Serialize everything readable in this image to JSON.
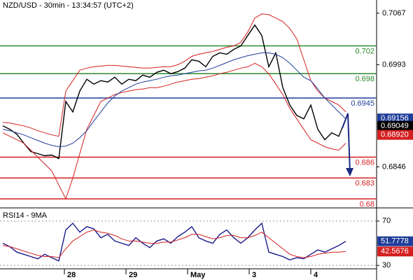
{
  "chart_data": [
    {
      "type": "line",
      "title": "NZD/USD - 30min - 13:34:57 (UTC+2)",
      "xlim": [
        -0.4,
        53.4
      ],
      "ylim": [
        0.6789,
        0.7086
      ],
      "yticks": [
        0.7067,
        0.6993,
        0.6846
      ],
      "series": [
        {
          "name": "Price",
          "color": "#000000",
          "values": [
            0.6905,
            0.69,
            0.6893,
            0.688,
            0.6868,
            0.6865,
            0.6862,
            0.6863,
            0.6858,
            0.694,
            0.6925,
            0.6955,
            0.6972,
            0.6965,
            0.697,
            0.6968,
            0.6975,
            0.6965,
            0.6972,
            0.697,
            0.6978,
            0.6975,
            0.6982,
            0.6985,
            0.698,
            0.6983,
            0.6988,
            0.7,
            0.6998,
            0.699,
            0.7005,
            0.701,
            0.7008,
            0.7015,
            0.702,
            0.7035,
            0.705,
            0.7035,
            0.699,
            0.701,
            0.696,
            0.6935,
            0.692,
            0.6915,
            0.6935,
            0.69,
            0.6885,
            0.6895,
            0.689,
            0.6915
          ]
        },
        {
          "name": "Upper band",
          "color": "#d42020",
          "values": [
            0.691,
            0.6909,
            0.6907,
            0.6905,
            0.6902,
            0.6898,
            0.6895,
            0.6892,
            0.689,
            0.6955,
            0.697,
            0.6985,
            0.6988,
            0.699,
            0.6991,
            0.6992,
            0.6992,
            0.6991,
            0.699,
            0.6989,
            0.6988,
            0.6988,
            0.6989,
            0.699,
            0.699,
            0.6993,
            0.6998,
            0.7005,
            0.7008,
            0.701,
            0.7012,
            0.7015,
            0.7018,
            0.702,
            0.7025,
            0.704,
            0.706,
            0.7066,
            0.7065,
            0.706,
            0.7055,
            0.7045,
            0.703,
            0.7,
            0.697,
            0.6955,
            0.6945,
            0.694,
            0.6935,
            0.6925
          ]
        },
        {
          "name": "Lower band",
          "color": "#d42020",
          "values": [
            0.6895,
            0.689,
            0.6885,
            0.688,
            0.687,
            0.686,
            0.685,
            0.684,
            0.682,
            0.68,
            0.683,
            0.6865,
            0.69,
            0.692,
            0.694,
            0.6945,
            0.695,
            0.6953,
            0.6955,
            0.6957,
            0.6958,
            0.696,
            0.696,
            0.6962,
            0.6965,
            0.6968,
            0.697,
            0.6972,
            0.6973,
            0.6975,
            0.6977,
            0.698,
            0.6982,
            0.6985,
            0.6988,
            0.699,
            0.6995,
            0.699,
            0.698,
            0.6965,
            0.695,
            0.693,
            0.6915,
            0.69,
            0.6885,
            0.688,
            0.6875,
            0.6872,
            0.687,
            0.688
          ]
        },
        {
          "name": "Moving average",
          "color": "#1f3d99",
          "values": [
            0.69,
            0.6898,
            0.6895,
            0.6892,
            0.6888,
            0.6884,
            0.688,
            0.6877,
            0.6875,
            0.6876,
            0.688,
            0.6888,
            0.6898,
            0.6912,
            0.6925,
            0.6938,
            0.6948,
            0.6955,
            0.696,
            0.6965,
            0.6968,
            0.697,
            0.6972,
            0.6975,
            0.6977,
            0.6978,
            0.698,
            0.6982,
            0.6984,
            0.6985,
            0.6988,
            0.6992,
            0.6996,
            0.7,
            0.7003,
            0.7006,
            0.7008,
            0.701,
            0.701,
            0.7008,
            0.7003,
            0.6995,
            0.6985,
            0.6975,
            0.697,
            0.6958,
            0.6945,
            0.6935,
            0.6925,
            0.6915
          ]
        }
      ],
      "levels": [
        {
          "value": 0.702,
          "color": "#2a8a2a"
        },
        {
          "value": 0.698,
          "color": "#2a8a2a"
        },
        {
          "value": 0.6945,
          "color": "#1f3d99"
        },
        {
          "value": 0.686,
          "color": "#d42020"
        },
        {
          "value": 0.683,
          "color": "#d42020"
        },
        {
          "value": 0.68,
          "color": "#d42020"
        }
      ],
      "markers": [
        {
          "value": 0.69156,
          "color": "#1f3d99"
        },
        {
          "value": 0.69049,
          "color": "#000000"
        },
        {
          "value": 0.6892,
          "label": "0.68920",
          "color": "#d42020"
        }
      ]
    },
    {
      "type": "line",
      "title": "RSI14 - 9MA",
      "xlim": [
        -0.4,
        53.4
      ],
      "ylim": [
        20,
        80
      ],
      "yticks": [
        70,
        30
      ],
      "xticks": [
        {
          "value": 8.8,
          "label": "28"
        },
        {
          "value": 17.6,
          "label": "29"
        },
        {
          "value": 26.4,
          "label": "May"
        },
        {
          "value": 35.2,
          "label": "3"
        },
        {
          "value": 44,
          "label": "4"
        }
      ],
      "series": [
        {
          "name": "RSI14",
          "color": "#1a1a8c",
          "values": [
            50,
            47,
            42,
            40,
            38,
            36,
            40,
            37,
            34,
            62,
            68,
            60,
            65,
            63,
            55,
            58,
            52,
            50,
            48,
            55,
            50,
            46,
            52,
            54,
            50,
            56,
            60,
            65,
            55,
            52,
            50,
            58,
            62,
            55,
            50,
            55,
            62,
            68,
            42,
            40,
            38,
            35,
            37,
            36,
            40,
            44,
            42,
            45,
            48,
            51.7778
          ]
        },
        {
          "name": "9MA",
          "color": "#d42020",
          "values": [
            48,
            47,
            45,
            43,
            41,
            39,
            38,
            38,
            37,
            45,
            52,
            56,
            60,
            62,
            60,
            59,
            57,
            54,
            52,
            52,
            51,
            50,
            50,
            51,
            51,
            53,
            55,
            58,
            58,
            56,
            54,
            55,
            57,
            57,
            55,
            55,
            57,
            60,
            55,
            50,
            45,
            40,
            38,
            37,
            38,
            40,
            41,
            42,
            42,
            42.5676
          ]
        }
      ],
      "markers": [
        {
          "value": 51.7778,
          "color": "#1f3d99"
        },
        {
          "value": 42.5676,
          "color": "#d42020"
        }
      ]
    }
  ]
}
